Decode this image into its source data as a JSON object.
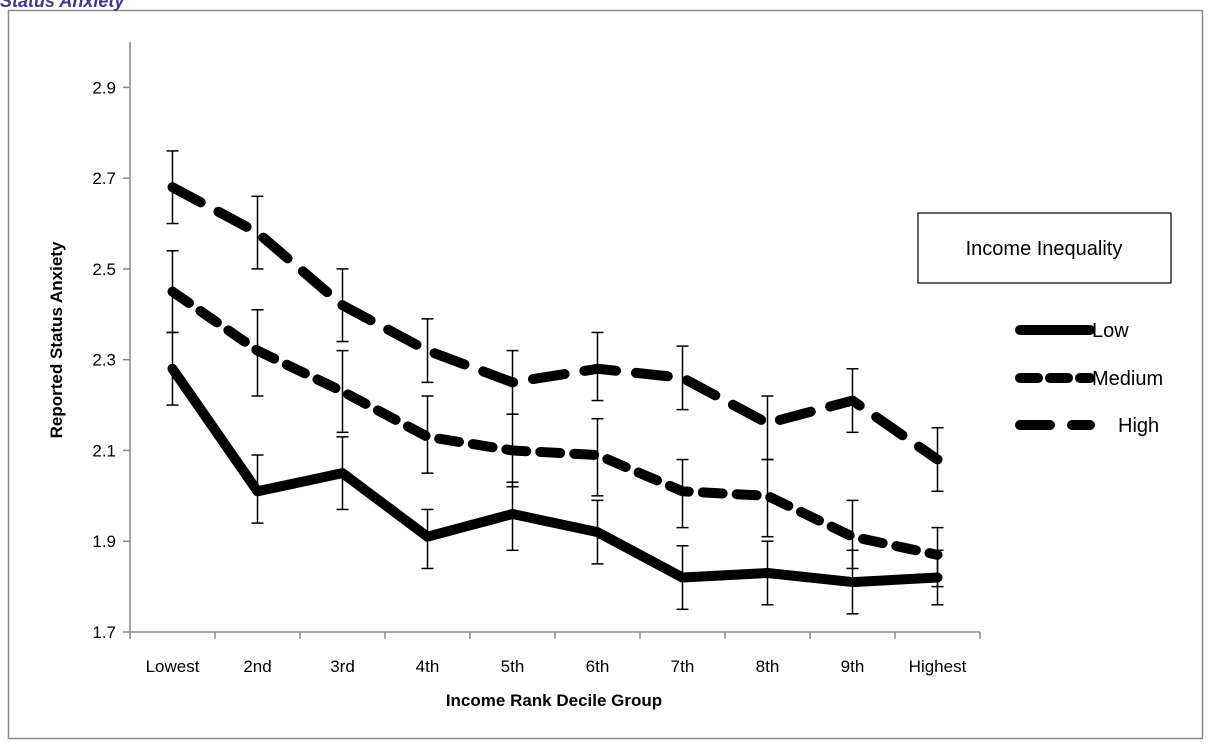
{
  "figure": {
    "cut_caption": "Status Anxiety"
  },
  "chart_data": {
    "type": "line",
    "title": "",
    "xlabel": "Income Rank Decile Group",
    "ylabel": "Reported Status Anxiety",
    "categories": [
      "Lowest",
      "2nd",
      "3rd",
      "4th",
      "5th",
      "6th",
      "7th",
      "8th",
      "9th",
      "Highest"
    ],
    "ylim": [
      1.7,
      3.0
    ],
    "yticks": [
      "1.7",
      "1.9",
      "2.1",
      "2.3",
      "2.5",
      "2.7",
      "2.9"
    ],
    "grid": false,
    "legend_title": "Income Inequality",
    "legend_position": "right",
    "series": [
      {
        "name": "Low",
        "style": "solid",
        "color": "#000000",
        "values": [
          2.28,
          2.01,
          2.05,
          1.91,
          1.96,
          1.92,
          1.82,
          1.83,
          1.81,
          1.82
        ],
        "err_low": [
          2.2,
          1.94,
          1.97,
          1.84,
          1.88,
          1.85,
          1.75,
          1.76,
          1.74,
          1.76
        ],
        "err_high": [
          2.36,
          2.09,
          2.13,
          1.97,
          2.03,
          1.99,
          1.89,
          1.9,
          1.88,
          1.88
        ]
      },
      {
        "name": "Medium",
        "style": "dashed-medium",
        "color": "#000000",
        "values": [
          2.45,
          2.32,
          2.23,
          2.13,
          2.1,
          2.09,
          2.01,
          2.0,
          1.91,
          1.87
        ],
        "err_low": [
          2.36,
          2.22,
          2.14,
          2.05,
          2.02,
          2.0,
          1.93,
          1.91,
          1.84,
          1.8
        ],
        "err_high": [
          2.54,
          2.41,
          2.32,
          2.22,
          2.18,
          2.17,
          2.08,
          2.08,
          1.99,
          1.93
        ]
      },
      {
        "name": "High",
        "style": "dashed-long",
        "color": "#000000",
        "values": [
          2.68,
          2.58,
          2.42,
          2.32,
          2.25,
          2.28,
          2.26,
          2.16,
          2.21,
          2.08
        ],
        "err_low": [
          2.6,
          2.5,
          2.34,
          2.25,
          2.18,
          2.21,
          2.19,
          2.08,
          2.14,
          2.01
        ],
        "err_high": [
          2.76,
          2.66,
          2.5,
          2.39,
          2.32,
          2.36,
          2.33,
          2.22,
          2.28,
          2.15
        ]
      }
    ]
  }
}
